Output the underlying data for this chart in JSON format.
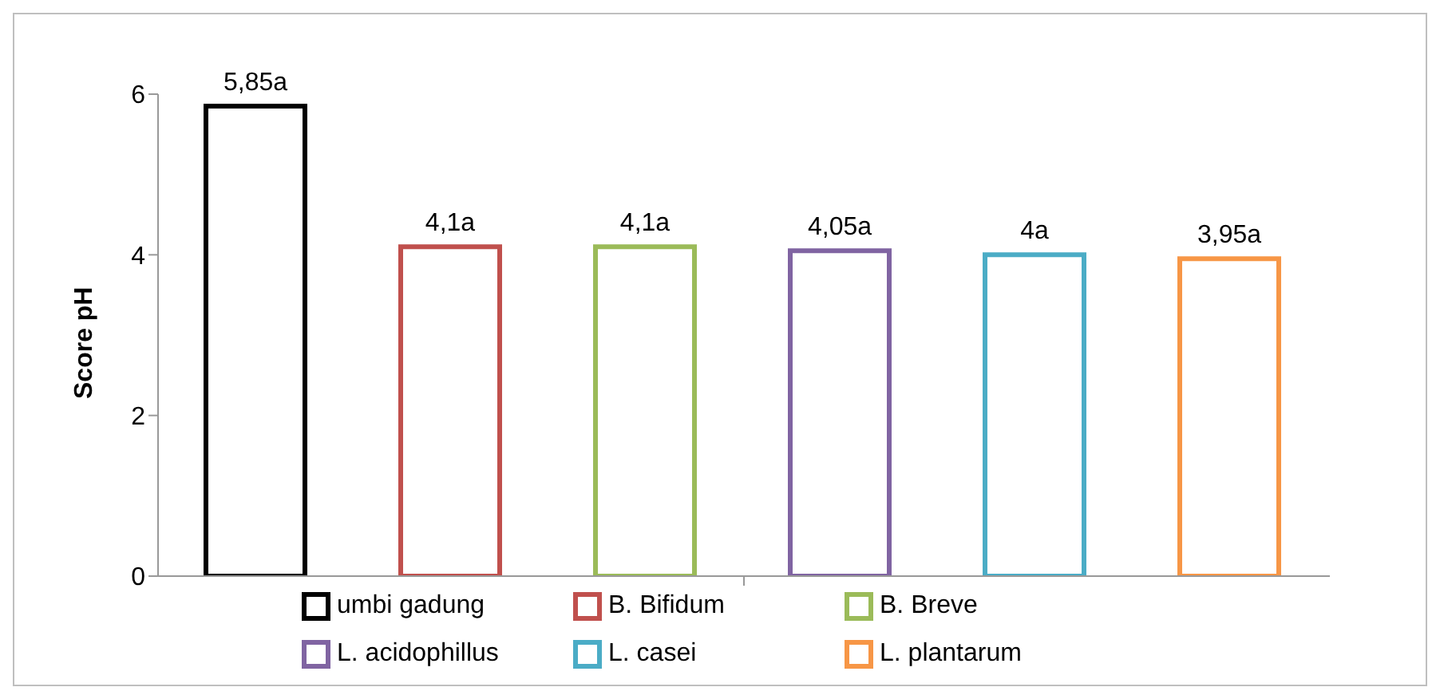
{
  "chart_data": {
    "type": "bar",
    "ylabel": "Score pH",
    "categories": [
      null
    ],
    "ylim": [
      0,
      6
    ],
    "yticks": [
      0,
      2,
      4,
      6
    ],
    "grid": false,
    "legend": "bottom",
    "series": [
      {
        "name": "umbi gadung",
        "color": "#000000",
        "values": [
          5.85
        ],
        "value_labels": [
          "5,85a"
        ]
      },
      {
        "name": "B. Bifidum",
        "color": "#c0504d",
        "values": [
          4.1
        ],
        "value_labels": [
          "4,1a"
        ]
      },
      {
        "name": "B. Breve",
        "color": "#9bbb59",
        "values": [
          4.1
        ],
        "value_labels": [
          "4,1a"
        ]
      },
      {
        "name": "L. acidophillus",
        "color": "#8064a2",
        "values": [
          4.05
        ],
        "value_labels": [
          "4,05a"
        ]
      },
      {
        "name": "L. casei",
        "color": "#4bacc6",
        "values": [
          4
        ],
        "value_labels": [
          "4a"
        ]
      },
      {
        "name": "L. plantarum",
        "color": "#f79646",
        "values": [
          3.95
        ],
        "value_labels": [
          "3,95a"
        ]
      }
    ]
  }
}
